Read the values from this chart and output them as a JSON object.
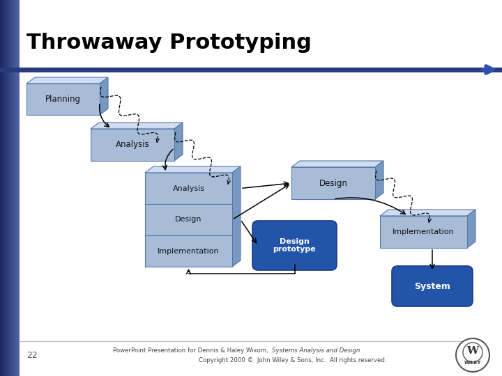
{
  "title": "Throwaway Prototyping",
  "slide_number": "22",
  "footer_line1": "PowerPoint Presentation for Dennis & Haley Wixom,  Systems Analysis and Design",
  "footer_line2": "Copyright 2000 ©  John Wiley & Sons, Inc.  All rights reserved.",
  "bg_color": "#ffffff",
  "sidebar_gradient_dark": "#1a2a60",
  "sidebar_gradient_light": "#4a6aaa",
  "header_bar_color": "#2a3a80",
  "title_color": "#000000",
  "box_fill_front": "#a8bcd8",
  "box_fill_right": "#7898c0",
  "box_fill_top": "#d0ddf0",
  "box_stroke": "#5577aa",
  "prototype_fill": "#2255aa",
  "system_fill": "#2255aa",
  "arrow_color": "#000000",
  "footer_color": "#444444",
  "footer_italic": "Systems Analysis and Design"
}
